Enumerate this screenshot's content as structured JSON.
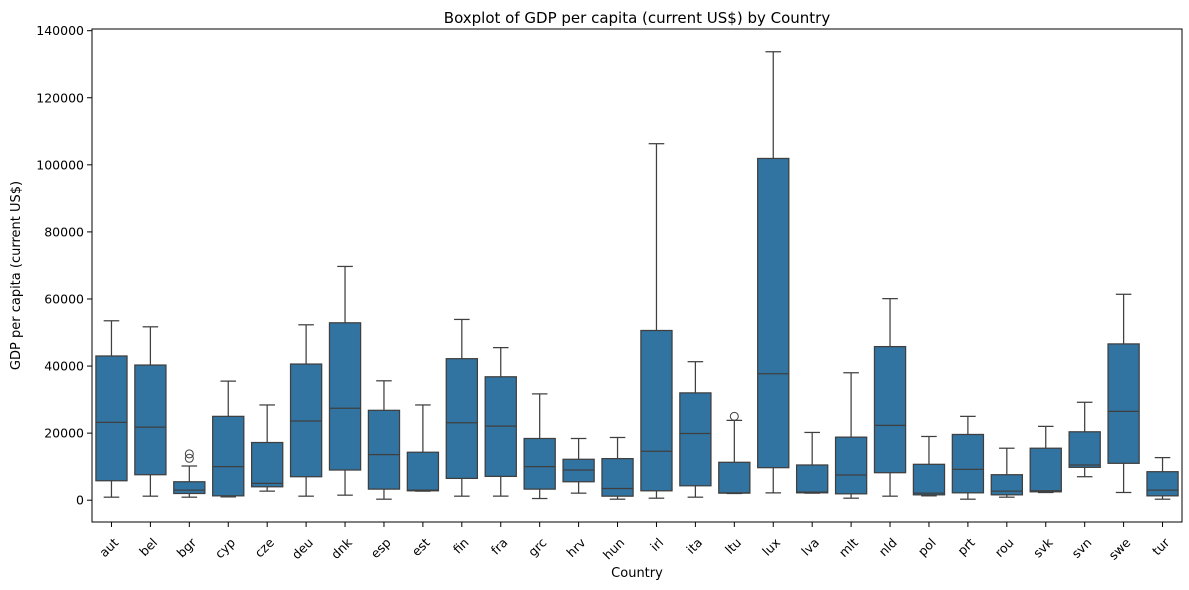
{
  "chart_data": {
    "type": "boxplot",
    "title": "Boxplot of GDP per capita (current US$) by Country",
    "xlabel": "Country",
    "ylabel": "GDP per capita (current US$)",
    "ylim": [
      -6500,
      140500
    ],
    "yticks": [
      0,
      20000,
      40000,
      60000,
      80000,
      100000,
      120000,
      140000
    ],
    "ytick_labels": [
      "0",
      "20000",
      "40000",
      "60000",
      "80000",
      "100000",
      "120000",
      "140000"
    ],
    "grid": false,
    "box_color": "#3274a1",
    "line_color": "#3f3f3f",
    "categories": [
      "aut",
      "bel",
      "bgr",
      "cyp",
      "cze",
      "deu",
      "dnk",
      "esp",
      "est",
      "fin",
      "fra",
      "grc",
      "hrv",
      "hun",
      "irl",
      "ita",
      "ltu",
      "lux",
      "lva",
      "mlt",
      "nld",
      "pol",
      "prt",
      "rou",
      "svk",
      "svn",
      "swe",
      "tur"
    ],
    "boxes": [
      {
        "whislo": 900,
        "q1": 5800,
        "med": 23200,
        "q3": 43000,
        "whishi": 53500,
        "fliers": []
      },
      {
        "whislo": 1200,
        "q1": 7600,
        "med": 21800,
        "q3": 40300,
        "whishi": 51700,
        "fliers": []
      },
      {
        "whislo": 900,
        "q1": 2000,
        "med": 3000,
        "q3": 5500,
        "whishi": 10200,
        "fliers": [
          12500,
          13800
        ]
      },
      {
        "whislo": 1000,
        "q1": 1300,
        "med": 10000,
        "q3": 25000,
        "whishi": 35500,
        "fliers": []
      },
      {
        "whislo": 2700,
        "q1": 4000,
        "med": 5000,
        "q3": 17200,
        "whishi": 28400,
        "fliers": []
      },
      {
        "whislo": 1200,
        "q1": 7000,
        "med": 23600,
        "q3": 40600,
        "whishi": 52300,
        "fliers": []
      },
      {
        "whislo": 1500,
        "q1": 9000,
        "med": 27400,
        "q3": 52900,
        "whishi": 69700,
        "fliers": []
      },
      {
        "whislo": 300,
        "q1": 3300,
        "med": 13600,
        "q3": 26800,
        "whishi": 35600,
        "fliers": []
      },
      {
        "whislo": 2700,
        "q1": 2800,
        "med": 3000,
        "q3": 14300,
        "whishi": 28400,
        "fliers": []
      },
      {
        "whislo": 1200,
        "q1": 6500,
        "med": 23100,
        "q3": 42200,
        "whishi": 53900,
        "fliers": []
      },
      {
        "whislo": 1200,
        "q1": 7100,
        "med": 22100,
        "q3": 36800,
        "whishi": 45500,
        "fliers": []
      },
      {
        "whislo": 500,
        "q1": 3300,
        "med": 10000,
        "q3": 18400,
        "whishi": 31700,
        "fliers": []
      },
      {
        "whislo": 2100,
        "q1": 5500,
        "med": 9000,
        "q3": 12200,
        "whishi": 18400,
        "fliers": []
      },
      {
        "whislo": 300,
        "q1": 1200,
        "med": 3500,
        "q3": 12400,
        "whishi": 18700,
        "fliers": []
      },
      {
        "whislo": 600,
        "q1": 2800,
        "med": 14600,
        "q3": 50600,
        "whishi": 106300,
        "fliers": []
      },
      {
        "whislo": 900,
        "q1": 4300,
        "med": 19900,
        "q3": 32000,
        "whishi": 41300,
        "fliers": []
      },
      {
        "whislo": 2000,
        "q1": 2100,
        "med": 2200,
        "q3": 11300,
        "whishi": 23800,
        "fliers": [
          25000
        ]
      },
      {
        "whislo": 2200,
        "q1": 9700,
        "med": 37700,
        "q3": 101900,
        "whishi": 133700,
        "fliers": []
      },
      {
        "whislo": 2100,
        "q1": 2200,
        "med": 2400,
        "q3": 10500,
        "whishi": 20200,
        "fliers": []
      },
      {
        "whislo": 600,
        "q1": 1900,
        "med": 7500,
        "q3": 18800,
        "whishi": 38000,
        "fliers": []
      },
      {
        "whislo": 1200,
        "q1": 8200,
        "med": 22300,
        "q3": 45800,
        "whishi": 60100,
        "fliers": []
      },
      {
        "whislo": 1300,
        "q1": 1600,
        "med": 2100,
        "q3": 10700,
        "whishi": 19000,
        "fliers": []
      },
      {
        "whislo": 300,
        "q1": 2200,
        "med": 9200,
        "q3": 19600,
        "whishi": 25000,
        "fliers": []
      },
      {
        "whislo": 900,
        "q1": 1600,
        "med": 2700,
        "q3": 7600,
        "whishi": 15500,
        "fliers": []
      },
      {
        "whislo": 2300,
        "q1": 2500,
        "med": 2800,
        "q3": 15500,
        "whishi": 22000,
        "fliers": []
      },
      {
        "whislo": 7000,
        "q1": 9800,
        "med": 10500,
        "q3": 20400,
        "whishi": 29200,
        "fliers": []
      },
      {
        "whislo": 2300,
        "q1": 11000,
        "med": 26500,
        "q3": 46600,
        "whishi": 61400,
        "fliers": []
      },
      {
        "whislo": 300,
        "q1": 1300,
        "med": 3000,
        "q3": 8500,
        "whishi": 12700,
        "fliers": []
      }
    ]
  }
}
